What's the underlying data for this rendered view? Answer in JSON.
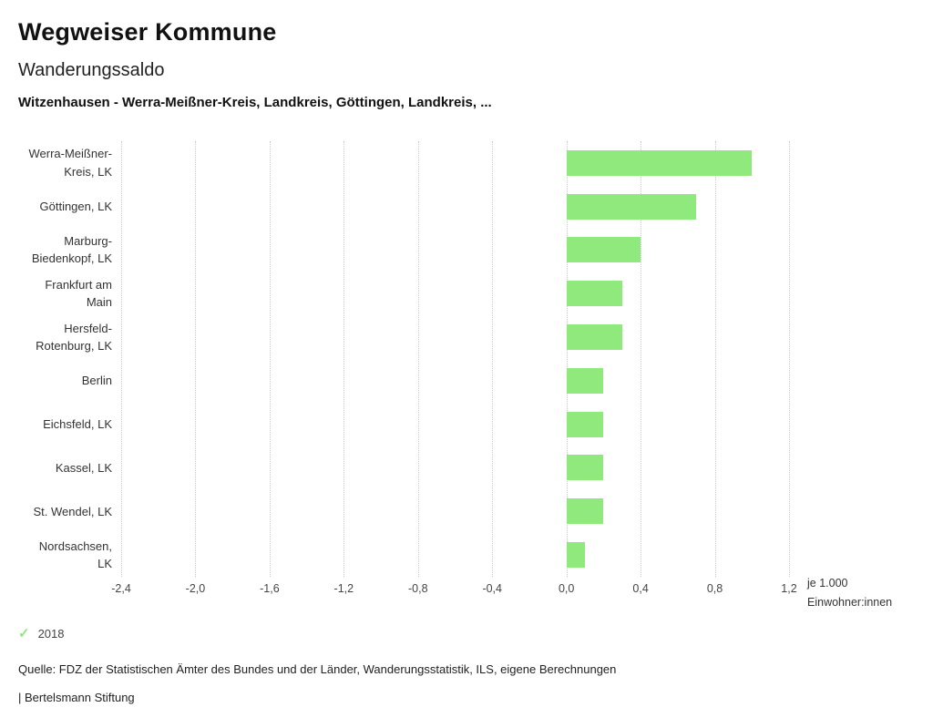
{
  "header": {
    "title": "Wegweiser Kommune",
    "subtitle": "Wanderungssaldo",
    "selection": "Witzenhausen - Werra-Meißner-Kreis, Landkreis, Göttingen, Landkreis, ..."
  },
  "chart_data": {
    "type": "bar",
    "orientation": "horizontal",
    "title": "Wanderungssaldo",
    "series_name": "2018",
    "categories": [
      "Werra-Meißner-Kreis, LK",
      "Göttingen, LK",
      "Marburg-Biedenkopf, LK",
      "Frankfurt am Main",
      "Hersfeld-Rotenburg, LK",
      "Berlin",
      "Eichsfeld, LK",
      "Kassel, LK",
      "St. Wendel, LK",
      "Nordsachsen, LK"
    ],
    "label_lines": [
      [
        "Werra-Meißner-",
        "Kreis, LK"
      ],
      [
        "Göttingen, LK"
      ],
      [
        "Marburg-",
        "Biedenkopf, LK"
      ],
      [
        "Frankfurt am",
        "Main"
      ],
      [
        "Hersfeld-",
        "Rotenburg, LK"
      ],
      [
        "Berlin"
      ],
      [
        "Eichsfeld, LK"
      ],
      [
        "Kassel, LK"
      ],
      [
        "St. Wendel, LK"
      ],
      [
        "Nordsachsen,",
        "LK"
      ]
    ],
    "values": [
      1.0,
      0.7,
      0.4,
      0.3,
      0.3,
      0.2,
      0.2,
      0.2,
      0.2,
      0.1
    ],
    "xlim": [
      -2.4,
      1.2
    ],
    "x_tick_values": [
      -2.4,
      -2.0,
      -1.6,
      -1.2,
      -0.8,
      -0.4,
      0.0,
      0.4,
      0.8,
      1.2
    ],
    "x_ticks": [
      "-2,4",
      "-2,0",
      "-1,6",
      "-1,2",
      "-0,8",
      "-0,4",
      "0,0",
      "0,4",
      "0,8",
      "1,2"
    ],
    "unit_label_line1": "je 1.000",
    "unit_label_line2": "Einwohner:innen",
    "bar_color": "#8fe97d",
    "grid": "dotted-vertical",
    "legend_position": "bottom-left"
  },
  "legend": {
    "year": "2018",
    "check_icon": "check-icon",
    "check_color": "#8fe97d"
  },
  "footer": {
    "source": "Quelle: FDZ der Statistischen Ämter des Bundes und der Länder, Wanderungsstatistik, ILS, eigene Berechnungen",
    "brand": "| Bertelsmann Stiftung"
  }
}
